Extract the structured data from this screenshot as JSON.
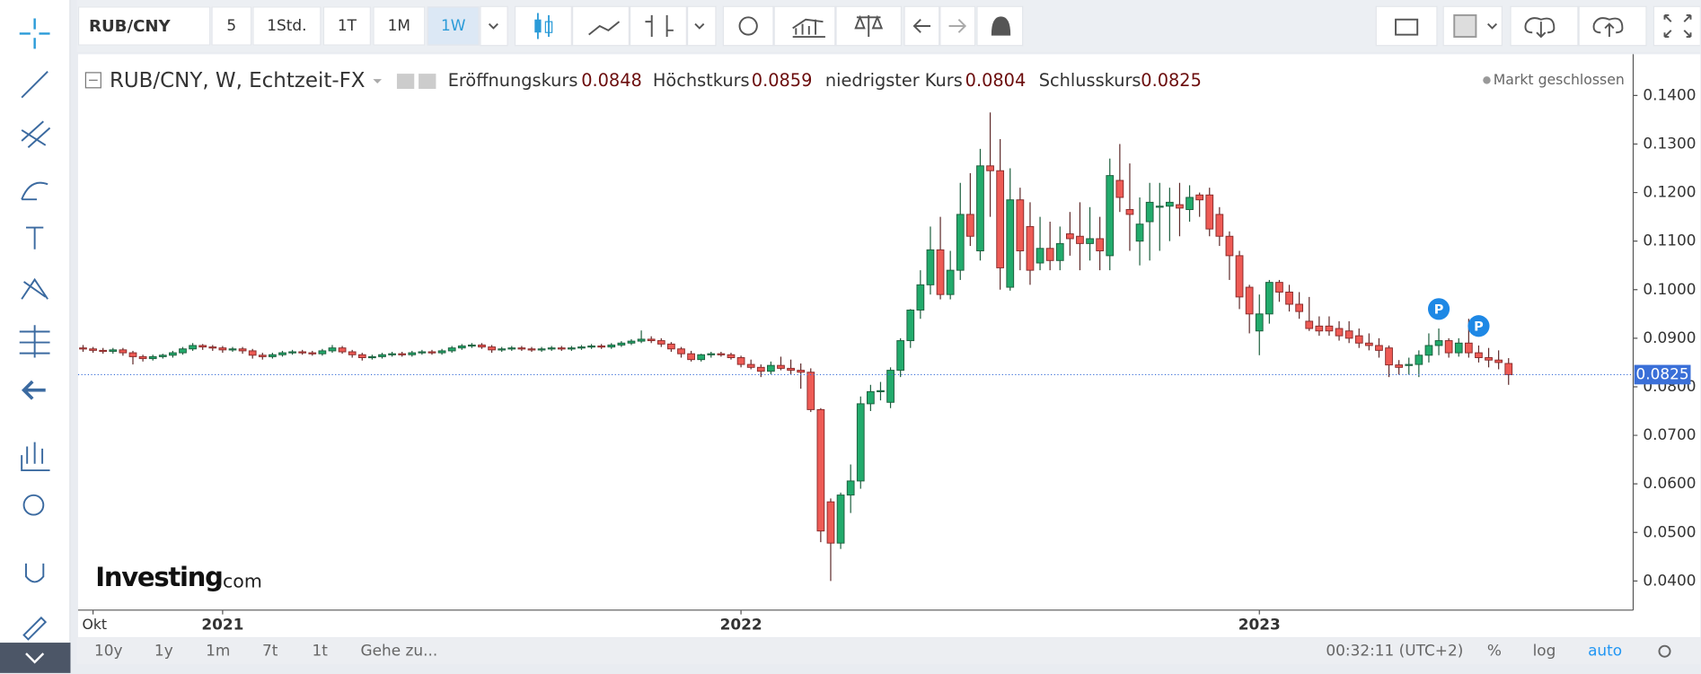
{
  "ui": {
    "symbol": "RUB/CNY",
    "intervals": [
      "5",
      "1Std.",
      "1T",
      "1M",
      "1W"
    ],
    "active_interval": 4,
    "ranges": [
      "10y",
      "1y",
      "1m",
      "7t",
      "1t"
    ],
    "goto": "Gehe zu...",
    "clock": "00:32:11 (UTC+2)",
    "scale_options": [
      "%",
      "log",
      "auto"
    ],
    "active_scale": 2,
    "logo": [
      "Investing",
      ".com"
    ]
  },
  "chart_data": {
    "type": "candlestick",
    "title": "RUB/CNY, W, Echtzeit-FX",
    "status": "Markt geschlossen",
    "ohlc_labels": [
      "Eröffnungskurs",
      "Höchstkurs",
      "niedrigster Kurs",
      "Schlusskurs"
    ],
    "up_color": "#22ab6c",
    "down_color": "#ee5b55",
    "grid": false,
    "price_line": true,
    "price_line_color": "#3a6fd8",
    "ylim": [
      0.034,
      0.1485
    ],
    "yticks": [
      {
        "value": 0.04,
        "label": "0.0400"
      },
      {
        "value": 0.05,
        "label": "0.0500"
      },
      {
        "value": 0.06,
        "label": "0.0600"
      },
      {
        "value": 0.07,
        "label": "0.0700"
      },
      {
        "value": 0.08,
        "label": "0.0800"
      },
      {
        "value": 0.09,
        "label": "0.0900"
      },
      {
        "value": 0.1,
        "label": "0.1000"
      },
      {
        "value": 0.11,
        "label": "0.1100"
      },
      {
        "value": 0.12,
        "label": "0.1200"
      },
      {
        "value": 0.13,
        "label": "0.1300"
      },
      {
        "value": 0.14,
        "label": "0.1400"
      }
    ],
    "xlim": [
      -0.5,
      155.5
    ],
    "xticks": [
      {
        "value": 1,
        "label": "Okt"
      },
      {
        "value": 14,
        "label": "2021"
      },
      {
        "value": 66,
        "label": "2022"
      },
      {
        "value": 118,
        "label": "2023"
      }
    ],
    "annotations": [
      {
        "label": "P",
        "candle": 136
      },
      {
        "label": "P",
        "candle": 140
      }
    ],
    "candles": [
      [
        0.088,
        0.0886,
        0.0872,
        0.0878
      ],
      [
        0.0878,
        0.0882,
        0.087,
        0.0875
      ],
      [
        0.0875,
        0.088,
        0.0868,
        0.0873
      ],
      [
        0.0873,
        0.088,
        0.0868,
        0.0876
      ],
      [
        0.0876,
        0.088,
        0.0864,
        0.087
      ],
      [
        0.087,
        0.0874,
        0.0846,
        0.0862
      ],
      [
        0.0862,
        0.0866,
        0.0852,
        0.0858
      ],
      [
        0.0858,
        0.0866,
        0.0854,
        0.0862
      ],
      [
        0.0862,
        0.0868,
        0.0858,
        0.0865
      ],
      [
        0.0865,
        0.0874,
        0.086,
        0.087
      ],
      [
        0.087,
        0.0882,
        0.0866,
        0.0878
      ],
      [
        0.0878,
        0.089,
        0.0874,
        0.0885
      ],
      [
        0.0885,
        0.0888,
        0.0876,
        0.0882
      ],
      [
        0.0882,
        0.0886,
        0.0874,
        0.088
      ],
      [
        0.088,
        0.0884,
        0.087,
        0.0876
      ],
      [
        0.0876,
        0.0882,
        0.0872,
        0.0878
      ],
      [
        0.0878,
        0.0882,
        0.0868,
        0.0874
      ],
      [
        0.0874,
        0.0878,
        0.0858,
        0.0865
      ],
      [
        0.0865,
        0.087,
        0.0856,
        0.0862
      ],
      [
        0.0862,
        0.087,
        0.0858,
        0.0866
      ],
      [
        0.0866,
        0.0874,
        0.0862,
        0.087
      ],
      [
        0.087,
        0.0876,
        0.0866,
        0.0872
      ],
      [
        0.0872,
        0.0876,
        0.0866,
        0.087
      ],
      [
        0.087,
        0.0874,
        0.0864,
        0.0868
      ],
      [
        0.0868,
        0.0878,
        0.0864,
        0.0874
      ],
      [
        0.0874,
        0.0886,
        0.087,
        0.088
      ],
      [
        0.088,
        0.0884,
        0.0868,
        0.0872
      ],
      [
        0.0872,
        0.0876,
        0.086,
        0.0866
      ],
      [
        0.0866,
        0.087,
        0.0854,
        0.086
      ],
      [
        0.086,
        0.0866,
        0.0856,
        0.0862
      ],
      [
        0.0862,
        0.087,
        0.0858,
        0.0866
      ],
      [
        0.0866,
        0.0872,
        0.0862,
        0.0868
      ],
      [
        0.0868,
        0.0872,
        0.0862,
        0.0866
      ],
      [
        0.0866,
        0.0874,
        0.0862,
        0.087
      ],
      [
        0.087,
        0.0876,
        0.0866,
        0.0872
      ],
      [
        0.0872,
        0.0876,
        0.0866,
        0.087
      ],
      [
        0.087,
        0.0878,
        0.0866,
        0.0874
      ],
      [
        0.0874,
        0.0884,
        0.087,
        0.088
      ],
      [
        0.088,
        0.0888,
        0.0876,
        0.0884
      ],
      [
        0.0884,
        0.089,
        0.088,
        0.0886
      ],
      [
        0.0886,
        0.089,
        0.0878,
        0.0882
      ],
      [
        0.0882,
        0.0886,
        0.087,
        0.0876
      ],
      [
        0.0876,
        0.0882,
        0.0872,
        0.0878
      ],
      [
        0.0878,
        0.0884,
        0.0874,
        0.088
      ],
      [
        0.088,
        0.0884,
        0.0874,
        0.0878
      ],
      [
        0.0878,
        0.0882,
        0.0872,
        0.0876
      ],
      [
        0.0876,
        0.0882,
        0.0872,
        0.0878
      ],
      [
        0.0878,
        0.0884,
        0.0874,
        0.088
      ],
      [
        0.088,
        0.0884,
        0.0874,
        0.0878
      ],
      [
        0.0878,
        0.0884,
        0.0874,
        0.088
      ],
      [
        0.088,
        0.0886,
        0.0876,
        0.0882
      ],
      [
        0.0882,
        0.0888,
        0.0878,
        0.0884
      ],
      [
        0.0884,
        0.0888,
        0.0878,
        0.0882
      ],
      [
        0.0882,
        0.089,
        0.0878,
        0.0886
      ],
      [
        0.0886,
        0.0894,
        0.0882,
        0.089
      ],
      [
        0.089,
        0.0898,
        0.0886,
        0.0894
      ],
      [
        0.0894,
        0.0916,
        0.089,
        0.0898
      ],
      [
        0.0898,
        0.0904,
        0.089,
        0.0895
      ],
      [
        0.0895,
        0.09,
        0.0882,
        0.0888
      ],
      [
        0.0888,
        0.0892,
        0.0872,
        0.0878
      ],
      [
        0.0878,
        0.0882,
        0.086,
        0.0868
      ],
      [
        0.0868,
        0.0874,
        0.0852,
        0.0856
      ],
      [
        0.0856,
        0.0868,
        0.0852,
        0.0866
      ],
      [
        0.0866,
        0.0872,
        0.086,
        0.0868
      ],
      [
        0.0868,
        0.0872,
        0.0862,
        0.0866
      ],
      [
        0.0866,
        0.087,
        0.0856,
        0.086
      ],
      [
        0.086,
        0.0864,
        0.084,
        0.0846
      ],
      [
        0.0846,
        0.0856,
        0.0836,
        0.084
      ],
      [
        0.084,
        0.0846,
        0.082,
        0.0832
      ],
      [
        0.0832,
        0.0852,
        0.0826,
        0.0844
      ],
      [
        0.0844,
        0.0862,
        0.0834,
        0.0838
      ],
      [
        0.0838,
        0.0856,
        0.0826,
        0.0834
      ],
      [
        0.0834,
        0.0848,
        0.0796,
        0.083
      ],
      [
        0.083,
        0.0838,
        0.0748,
        0.0753
      ],
      [
        0.0753,
        0.0756,
        0.048,
        0.0503
      ],
      [
        0.0563,
        0.057,
        0.04,
        0.0478
      ],
      [
        0.0478,
        0.0582,
        0.0466,
        0.0577
      ],
      [
        0.0577,
        0.064,
        0.054,
        0.0606
      ],
      [
        0.0606,
        0.078,
        0.059,
        0.0765
      ],
      [
        0.0765,
        0.0804,
        0.075,
        0.079
      ],
      [
        0.079,
        0.081,
        0.0772,
        0.0792
      ],
      [
        0.0768,
        0.084,
        0.0756,
        0.0834
      ],
      [
        0.0834,
        0.09,
        0.082,
        0.0895
      ],
      [
        0.0895,
        0.096,
        0.088,
        0.0958
      ],
      [
        0.0958,
        0.104,
        0.094,
        0.101
      ],
      [
        0.101,
        0.113,
        0.099,
        0.1082
      ],
      [
        0.1082,
        0.115,
        0.098,
        0.099
      ],
      [
        0.099,
        0.108,
        0.098,
        0.104
      ],
      [
        0.104,
        0.122,
        0.102,
        0.1155
      ],
      [
        0.1155,
        0.124,
        0.109,
        0.111
      ],
      [
        0.108,
        0.129,
        0.106,
        0.1255
      ],
      [
        0.1255,
        0.1365,
        0.115,
        0.1245
      ],
      [
        0.1245,
        0.131,
        0.1,
        0.1045
      ],
      [
        0.1005,
        0.125,
        0.0998,
        0.1185
      ],
      [
        0.1185,
        0.121,
        0.104,
        0.108
      ],
      [
        0.113,
        0.118,
        0.101,
        0.104
      ],
      [
        0.1055,
        0.115,
        0.104,
        0.1085
      ],
      [
        0.1085,
        0.114,
        0.104,
        0.106
      ],
      [
        0.106,
        0.113,
        0.104,
        0.1095
      ],
      [
        0.1115,
        0.116,
        0.107,
        0.1105
      ],
      [
        0.111,
        0.118,
        0.104,
        0.1095
      ],
      [
        0.1095,
        0.117,
        0.106,
        0.1105
      ],
      [
        0.1105,
        0.115,
        0.104,
        0.108
      ],
      [
        0.107,
        0.127,
        0.104,
        0.1235
      ],
      [
        0.1225,
        0.13,
        0.116,
        0.119
      ],
      [
        0.1165,
        0.126,
        0.108,
        0.1155
      ],
      [
        0.11,
        0.119,
        0.105,
        0.1135
      ],
      [
        0.114,
        0.122,
        0.106,
        0.118
      ],
      [
        0.117,
        0.122,
        0.108,
        0.1172
      ],
      [
        0.1172,
        0.121,
        0.11,
        0.118
      ],
      [
        0.1175,
        0.122,
        0.111,
        0.1168
      ],
      [
        0.1165,
        0.1215,
        0.114,
        0.119
      ],
      [
        0.1195,
        0.12,
        0.115,
        0.1185
      ],
      [
        0.1195,
        0.121,
        0.111,
        0.1125
      ],
      [
        0.1155,
        0.117,
        0.109,
        0.111
      ],
      [
        0.111,
        0.112,
        0.102,
        0.107
      ],
      [
        0.107,
        0.108,
        0.096,
        0.0985
      ],
      [
        0.1005,
        0.101,
        0.091,
        0.095
      ],
      [
        0.0915,
        0.099,
        0.0865,
        0.095
      ],
      [
        0.095,
        0.102,
        0.093,
        0.1015
      ],
      [
        0.1015,
        0.102,
        0.0975,
        0.0995
      ],
      [
        0.0995,
        0.101,
        0.0955,
        0.097
      ],
      [
        0.097,
        0.0995,
        0.094,
        0.0955
      ],
      [
        0.0935,
        0.0985,
        0.0915,
        0.092
      ],
      [
        0.0925,
        0.0945,
        0.0905,
        0.0915
      ],
      [
        0.0925,
        0.0945,
        0.0905,
        0.0915
      ],
      [
        0.092,
        0.0935,
        0.0895,
        0.0905
      ],
      [
        0.0915,
        0.0935,
        0.089,
        0.09
      ],
      [
        0.0905,
        0.092,
        0.088,
        0.089
      ],
      [
        0.089,
        0.091,
        0.0875,
        0.0885
      ],
      [
        0.0885,
        0.09,
        0.086,
        0.0875
      ],
      [
        0.088,
        0.0885,
        0.082,
        0.0845
      ],
      [
        0.0845,
        0.0855,
        0.0825,
        0.084
      ],
      [
        0.0845,
        0.086,
        0.0825,
        0.0846
      ],
      [
        0.0846,
        0.0875,
        0.082,
        0.0865
      ],
      [
        0.0865,
        0.091,
        0.085,
        0.0885
      ],
      [
        0.0885,
        0.092,
        0.0865,
        0.0895
      ],
      [
        0.0895,
        0.09,
        0.086,
        0.087
      ],
      [
        0.087,
        0.09,
        0.0862,
        0.089
      ],
      [
        0.089,
        0.094,
        0.086,
        0.087
      ],
      [
        0.087,
        0.0885,
        0.085,
        0.086
      ],
      [
        0.086,
        0.088,
        0.084,
        0.0855
      ],
      [
        0.0855,
        0.0875,
        0.0836,
        0.085
      ],
      [
        0.0848,
        0.0859,
        0.0804,
        0.0825
      ]
    ]
  }
}
